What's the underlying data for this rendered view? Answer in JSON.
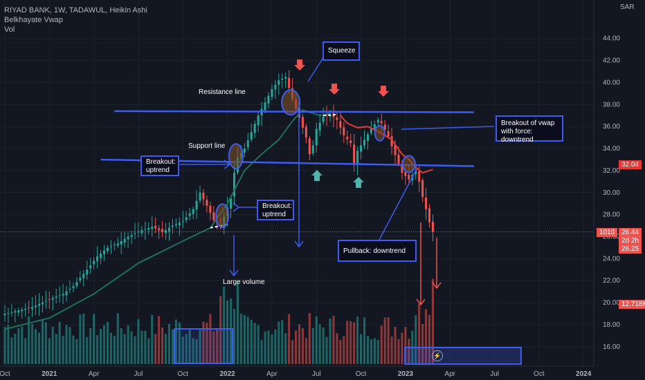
{
  "legend": {
    "title": "RIYAD BANK, 1W, TADAWUL, Heikin Ashi",
    "indicator": "Belkhayate Vwap",
    "volume": "Vol"
  },
  "colors": {
    "background": "#131722",
    "up": "#26a69a",
    "down": "#ef5350",
    "annotation": "#3f5cf0",
    "vwap_up": "#1f6f5c",
    "vwap_down": "#e53935"
  },
  "chart_data": {
    "type": "candlestick",
    "currency": "SAR",
    "y_ticks": [
      "44.00",
      "42.00",
      "40.00",
      "38.00",
      "36.00",
      "34.00",
      "32.00",
      "30.00",
      "28.00",
      "26.00",
      "24.00",
      "22.00",
      "20.00",
      "18.00",
      "16.00"
    ],
    "ylim": [
      15.3,
      45.3
    ],
    "x_ticks": [
      {
        "label": "Oct",
        "t": 0
      },
      {
        "label": "2021",
        "t": 13
      },
      {
        "label": "Apr",
        "t": 26
      },
      {
        "label": "Jul",
        "t": 39
      },
      {
        "label": "Oct",
        "t": 52
      },
      {
        "label": "2022",
        "t": 65
      },
      {
        "label": "Apr",
        "t": 78
      },
      {
        "label": "Jul",
        "t": 91
      },
      {
        "label": "Oct",
        "t": 104
      },
      {
        "label": "2023",
        "t": 117
      },
      {
        "label": "Apr",
        "t": 130
      },
      {
        "label": "Jul",
        "t": 143
      },
      {
        "label": "Oct",
        "t": 156
      },
      {
        "label": "2024",
        "t": 169
      }
    ],
    "xlim": [
      0,
      172
    ],
    "close_path": [
      [
        0,
        19.0
      ],
      [
        4,
        19.3
      ],
      [
        8,
        19.6
      ],
      [
        13,
        20.3
      ],
      [
        17,
        20.8
      ],
      [
        20,
        21.5
      ],
      [
        24,
        23.0
      ],
      [
        27,
        24.2
      ],
      [
        30,
        25.0
      ],
      [
        33,
        25.4
      ],
      [
        36,
        26.0
      ],
      [
        40,
        26.6
      ],
      [
        43,
        26.9
      ],
      [
        46,
        26.4
      ],
      [
        49,
        27.0
      ],
      [
        52,
        27.4
      ],
      [
        55,
        28.5
      ],
      [
        57,
        30.0
      ],
      [
        59,
        28.8
      ],
      [
        61,
        27.5
      ],
      [
        63,
        26.9
      ],
      [
        64,
        27.8
      ],
      [
        66,
        29.5
      ],
      [
        67,
        31.8
      ],
      [
        68,
        33.2
      ],
      [
        70,
        34.0
      ],
      [
        72,
        35.5
      ],
      [
        74,
        37.0
      ],
      [
        76,
        38.2
      ],
      [
        78,
        39.4
      ],
      [
        80,
        40.2
      ],
      [
        82,
        40.5
      ],
      [
        84,
        38.5
      ],
      [
        86,
        36.8
      ],
      [
        88,
        35.0
      ],
      [
        89,
        33.5
      ],
      [
        90,
        34.3
      ],
      [
        91,
        35.8
      ],
      [
        93,
        36.9
      ],
      [
        95,
        37.1
      ],
      [
        97,
        36.6
      ],
      [
        99,
        35.2
      ],
      [
        101,
        34.5
      ],
      [
        102,
        32.6
      ],
      [
        103,
        33.8
      ],
      [
        105,
        34.8
      ],
      [
        107,
        35.8
      ],
      [
        109,
        36.6
      ],
      [
        110,
        36.3
      ],
      [
        112,
        35.1
      ],
      [
        113,
        34.2
      ],
      [
        115,
        32.6
      ],
      [
        116,
        31.8
      ],
      [
        118,
        31.2
      ],
      [
        120,
        32.0
      ],
      [
        121,
        31.0
      ],
      [
        122,
        29.6
      ],
      [
        123,
        28.5
      ],
      [
        124,
        27.3
      ],
      [
        125,
        26.44
      ]
    ],
    "volume_ylim": [
      0,
      12
    ],
    "vwap": [
      [
        0,
        17.6
      ],
      [
        13,
        18.6
      ],
      [
        26,
        20.8
      ],
      [
        39,
        23.6
      ],
      [
        52,
        25.6
      ],
      [
        60,
        26.8
      ],
      [
        65,
        29.0
      ],
      [
        70,
        32.0
      ],
      [
        75,
        33.5
      ],
      [
        80,
        34.8
      ],
      [
        84,
        36.5
      ],
      [
        87,
        37.5
      ],
      [
        90,
        37.2
      ],
      [
        92,
        37.0
      ],
      [
        95,
        37.2
      ]
    ],
    "vwap_down": [
      [
        98,
        37.0
      ],
      [
        100,
        36.3
      ],
      [
        103,
        35.9
      ],
      [
        106,
        36.0
      ],
      [
        110,
        35.4
      ],
      [
        113,
        34.8
      ],
      [
        116,
        33.5
      ],
      [
        118,
        33.0
      ],
      [
        120,
        32.3
      ],
      [
        122,
        31.8
      ],
      [
        125,
        32.1
      ]
    ],
    "resistance": {
      "t0": 32,
      "t1": 137,
      "y0": 37.4,
      "y1": 37.3
    },
    "support": {
      "t0": 28,
      "t1": 137,
      "y0": 33.0,
      "y1": 32.4
    },
    "current": {
      "symbol": "1010",
      "last": "26.44",
      "countdown": "2d 2h",
      "low": "26.25",
      "vwap_value": "32.04",
      "volume_value": "12.718M"
    },
    "annotations": {
      "squeeze": "Squeeze",
      "resistance_line": "Resistance line",
      "support_line": "Support line",
      "breakout_uptrend_1": [
        "Breakout:",
        "uptrend"
      ],
      "breakout_uptrend_2": [
        "Breakout:",
        "uptrend"
      ],
      "large_volume": "Large volume",
      "breakout_vwap": [
        "Breakout of vwap",
        "with force: downtrend"
      ],
      "pullback": "Pullback: downtrend"
    }
  }
}
